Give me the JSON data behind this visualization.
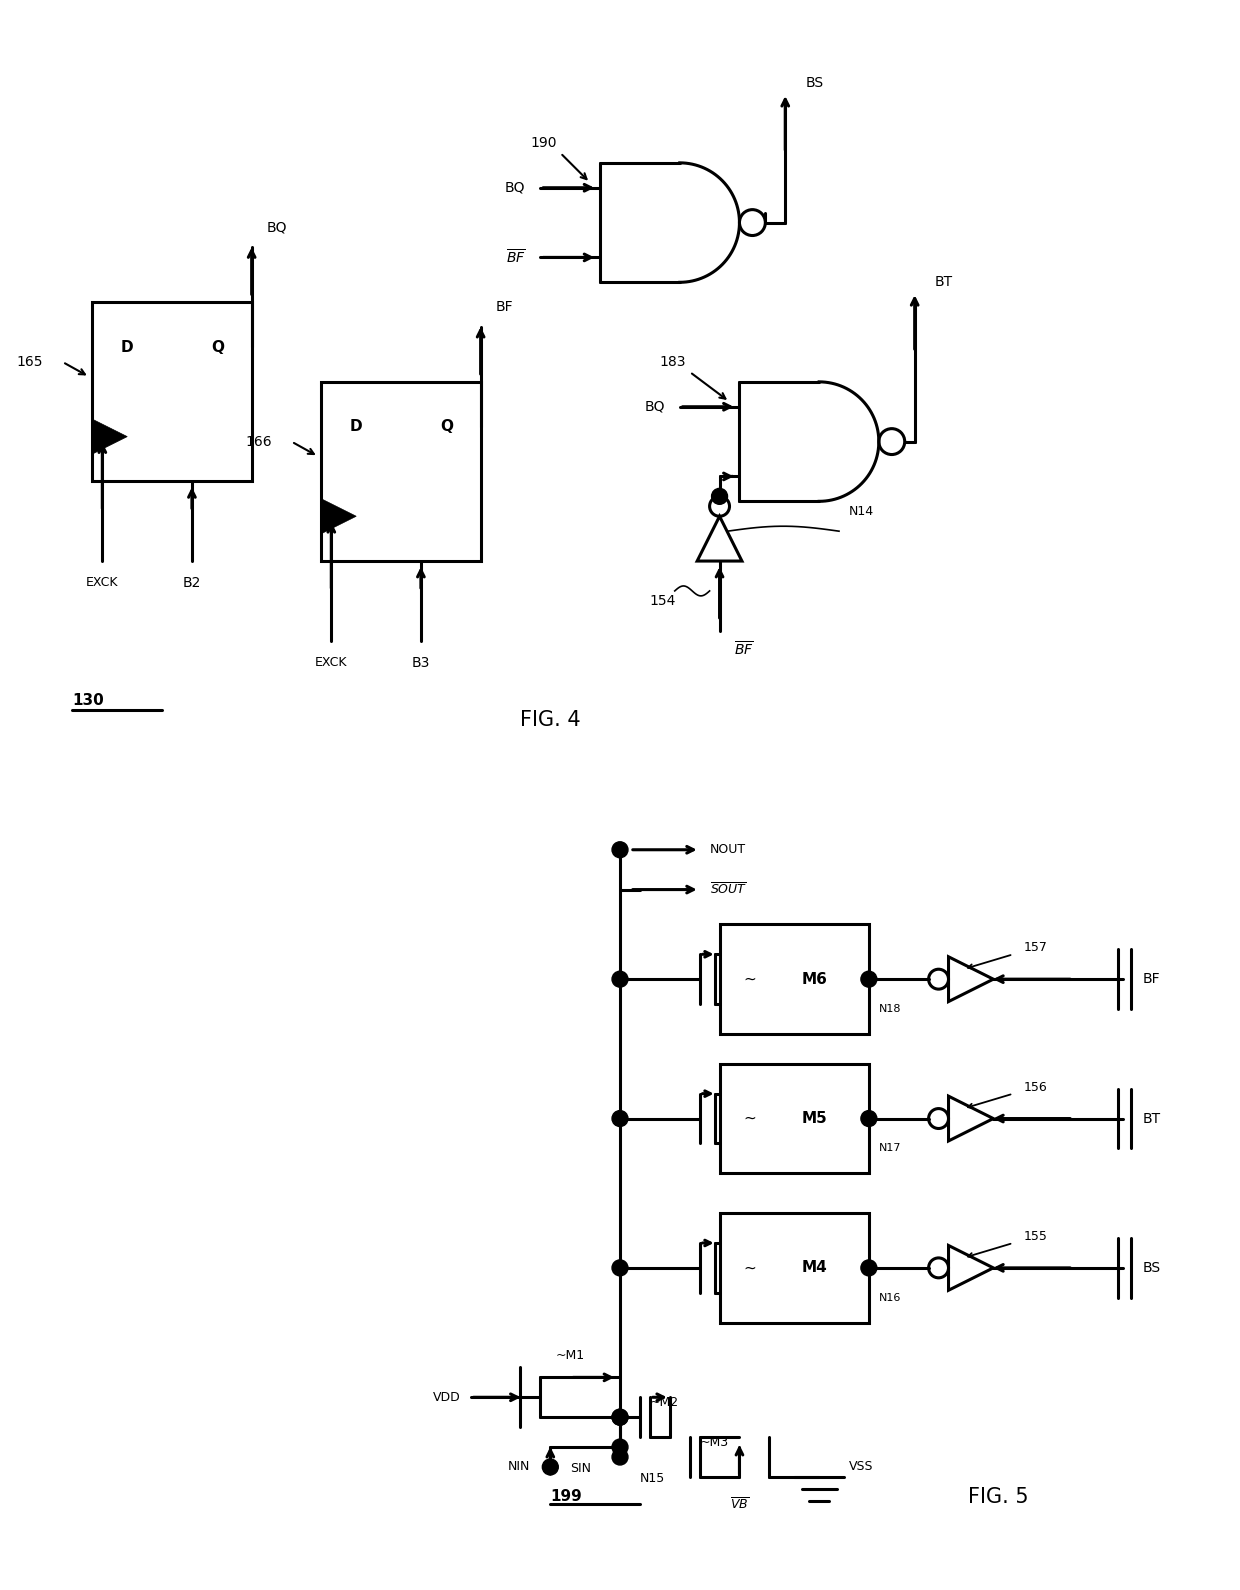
{
  "fig_width": 12.4,
  "fig_height": 15.9,
  "bg_color": "#ffffff",
  "line_color": "#000000",
  "lw": 2.2,
  "fig4_label": "FIG. 4",
  "fig5_label": "FIG. 5",
  "ref_130": "130",
  "ref_199": "199"
}
